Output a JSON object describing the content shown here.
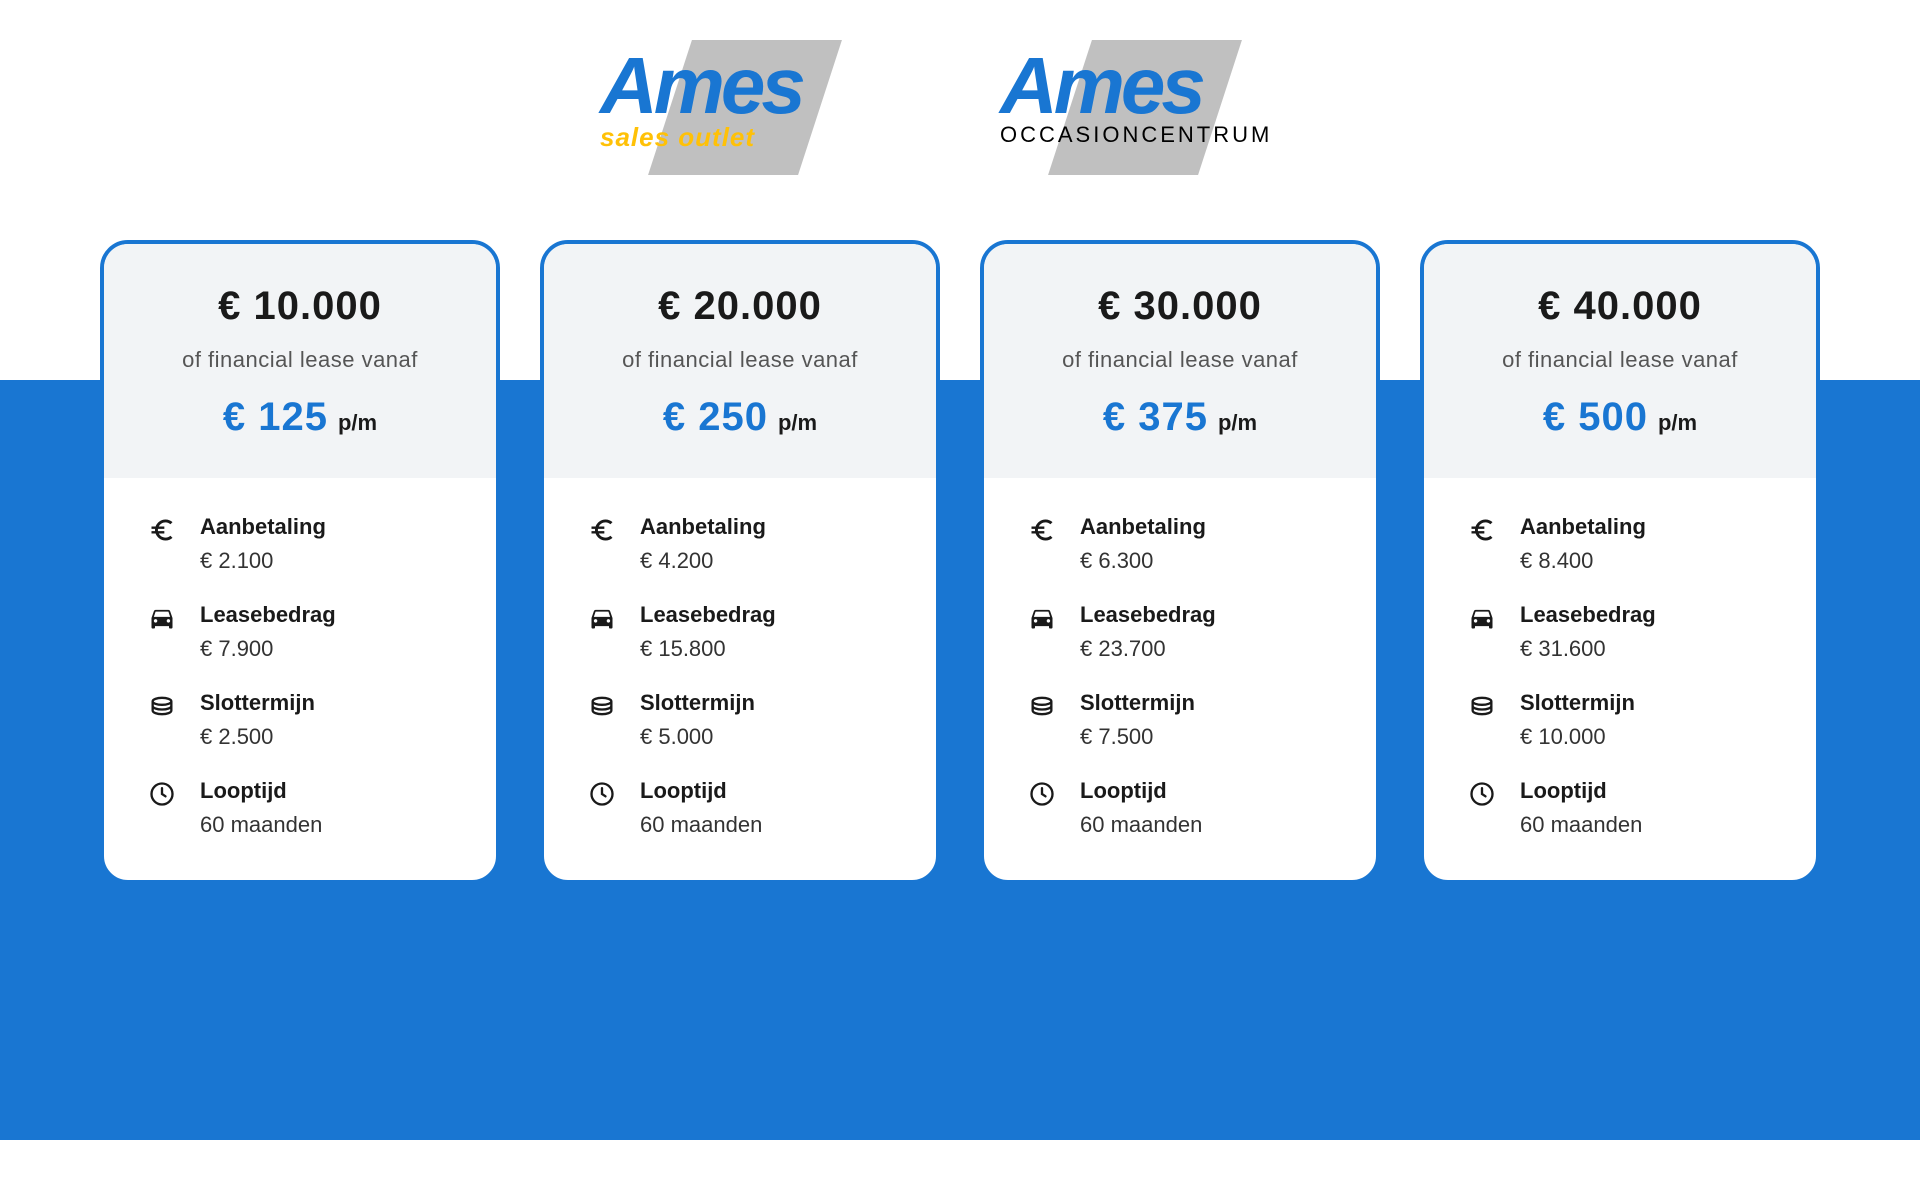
{
  "colors": {
    "brand_blue": "#1976d2",
    "brand_yellow": "#ffc107",
    "logo_bg_gray": "#c0c0c0",
    "header_bg": "#f2f4f6",
    "card_bg": "#ffffff",
    "text_dark": "#1a1a1a"
  },
  "logos": [
    {
      "main": "Ames",
      "sub": "sales outlet",
      "sub_style": "yellow"
    },
    {
      "main": "Ames",
      "sub": "OCCASIONCENTRUM",
      "sub_style": "black"
    }
  ],
  "lease_label": "of financial lease vanaf",
  "price_unit": "p/m",
  "detail_labels": {
    "aanbetaling": "Aanbetaling",
    "leasebedrag": "Leasebedrag",
    "slottermijn": "Slottermijn",
    "looptijd": "Looptijd"
  },
  "cards": [
    {
      "total": "€ 10.000",
      "monthly": "€ 125",
      "aanbetaling": "€ 2.100",
      "leasebedrag": "€ 7.900",
      "slottermijn": "€ 2.500",
      "looptijd": "60 maanden"
    },
    {
      "total": "€ 20.000",
      "monthly": "€ 250",
      "aanbetaling": "€ 4.200",
      "leasebedrag": "€ 15.800",
      "slottermijn": "€ 5.000",
      "looptijd": "60 maanden"
    },
    {
      "total": "€ 30.000",
      "monthly": "€ 375",
      "aanbetaling": "€ 6.300",
      "leasebedrag": "€ 23.700",
      "slottermijn": "€ 7.500",
      "looptijd": "60 maanden"
    },
    {
      "total": "€ 40.000",
      "monthly": "€ 500",
      "aanbetaling": "€ 8.400",
      "leasebedrag": "€ 31.600",
      "slottermijn": "€ 10.000",
      "looptijd": "60 maanden"
    }
  ]
}
